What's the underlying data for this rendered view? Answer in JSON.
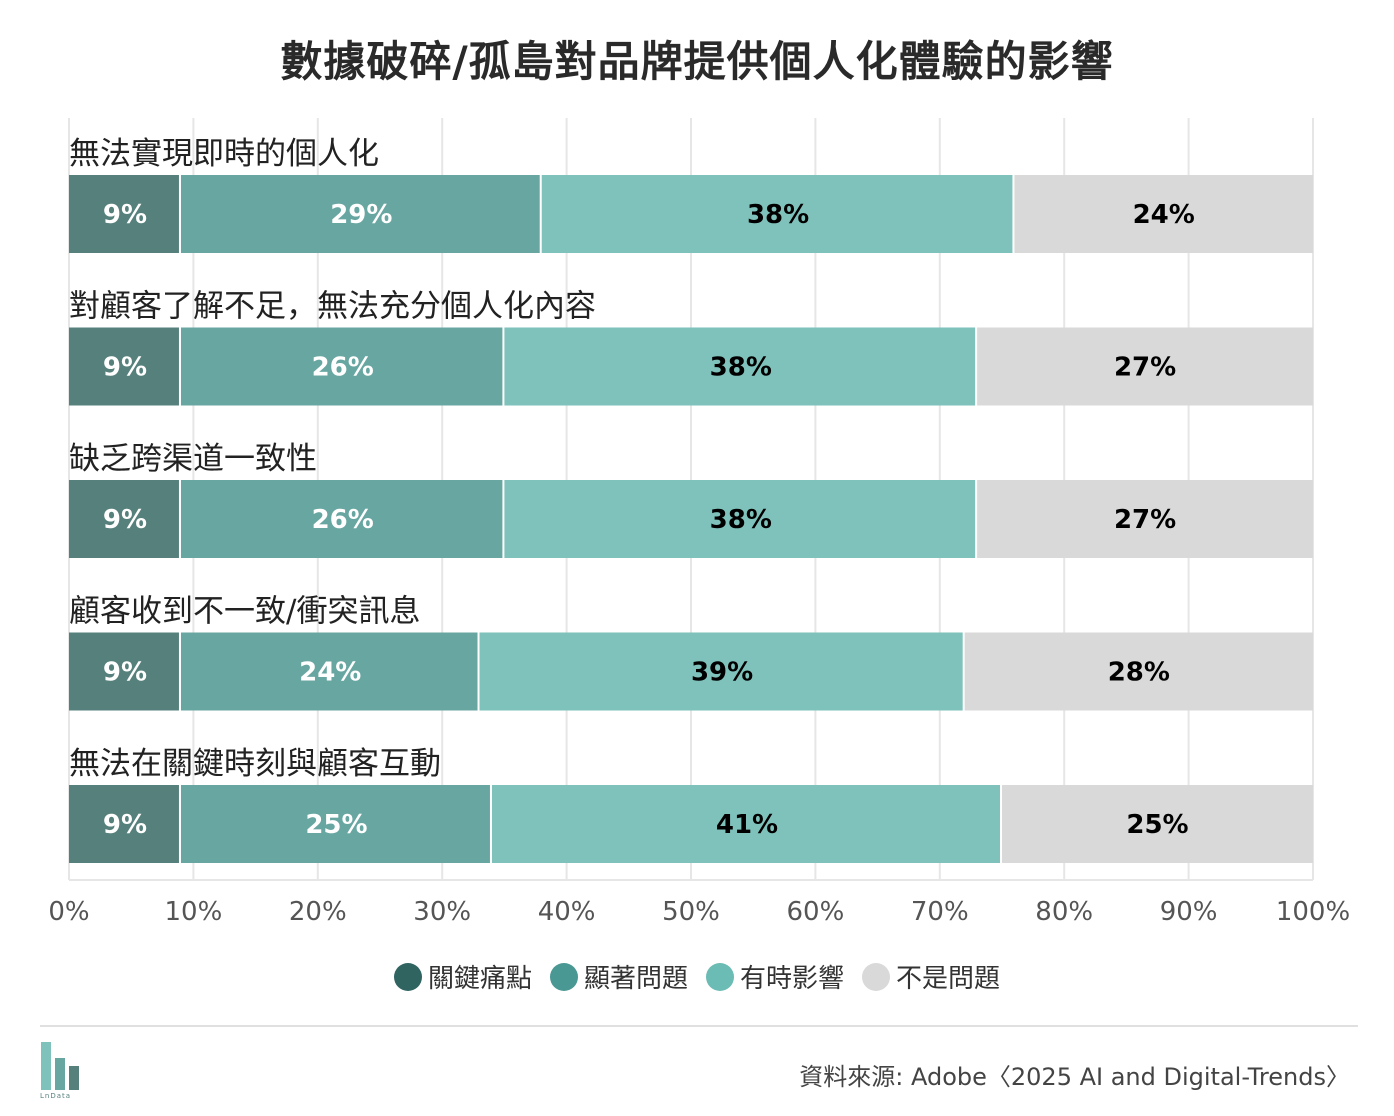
{
  "title": "數據破碎/孤島對品牌提供個人化體驗的影響",
  "chart_data": {
    "type": "bar",
    "orientation": "horizontal",
    "stacked": true,
    "categories": [
      "無法實現即時的個人化",
      "對顧客了解不足，無法充分個人化內容",
      "缺乏跨渠道一致性",
      "顧客收到不一致/衝突訊息",
      "無法在關鍵時刻與顧客互動"
    ],
    "series": [
      {
        "name": "關鍵痛點",
        "color": "#56807c",
        "text_color": "#ffffff",
        "values": [
          9,
          9,
          9,
          9,
          9
        ]
      },
      {
        "name": "顯著問題",
        "color": "#68a6a1",
        "text_color": "#ffffff",
        "values": [
          29,
          26,
          26,
          24,
          25
        ]
      },
      {
        "name": "有時影響",
        "color": "#7ec2bb",
        "text_color": "#000000",
        "values": [
          38,
          38,
          38,
          39,
          41
        ]
      },
      {
        "name": "不是問題",
        "color": "#d9d9d9",
        "text_color": "#000000",
        "values": [
          24,
          27,
          27,
          28,
          25
        ]
      }
    ],
    "value_suffix": "%",
    "xlim": [
      0,
      100
    ],
    "xticks": [
      "0%",
      "10%",
      "20%",
      "30%",
      "40%",
      "50%",
      "60%",
      "70%",
      "80%",
      "90%",
      "100%"
    ],
    "grid": true,
    "legend_position": "bottom"
  },
  "legend": {
    "items": [
      {
        "label": "關鍵痛點",
        "color": "#2f6461"
      },
      {
        "label": "顯著問題",
        "color": "#4a9893"
      },
      {
        "label": "有時影響",
        "color": "#6bbcb4"
      },
      {
        "label": "不是問題",
        "color": "#d9d9d9"
      }
    ]
  },
  "source": "資料來源: Adobe〈2025 AI and Digital-Trends〉",
  "logo_text": "LnData"
}
